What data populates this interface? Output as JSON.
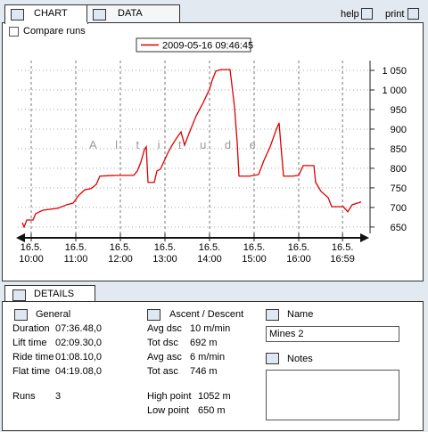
{
  "tabs": {
    "chart": "CHART",
    "data": "DATA",
    "details": "DETAILS"
  },
  "toolbar": {
    "help": "help",
    "print": "print"
  },
  "compare_runs": "Compare runs",
  "chart_data": {
    "type": "line",
    "annotation": "Altitude",
    "x": [
      9.8,
      9.84,
      9.9,
      10.04,
      10.1,
      10.26,
      10.6,
      10.8,
      10.94,
      11.06,
      11.2,
      11.34,
      11.46,
      11.54,
      11.9,
      12.3,
      12.38,
      12.46,
      12.54,
      12.58,
      12.62,
      12.76,
      12.82,
      12.9,
      12.96,
      13.06,
      13.16,
      13.26,
      13.36,
      13.44,
      13.54,
      13.7,
      13.86,
      14.0,
      14.06,
      14.14,
      14.26,
      14.46,
      14.5,
      14.56,
      14.62,
      14.66,
      14.9,
      15.1,
      15.22,
      15.36,
      15.5,
      15.56,
      15.6,
      15.66,
      15.86,
      16.0,
      16.1,
      16.34,
      16.38,
      16.5,
      16.66,
      16.74,
      17.0,
      17.1,
      17.2,
      17.4
    ],
    "series": [
      {
        "name": "2009-05-16 09:46:45",
        "color": "#dd0000",
        "values": [
          661,
          650,
          668,
          668,
          684,
          693,
          698,
          707,
          711,
          730,
          745,
          748,
          759,
          780,
          782,
          782,
          793,
          816,
          848,
          855,
          764,
          764,
          793,
          798,
          813,
          838,
          859,
          877,
          893,
          859,
          889,
          934,
          968,
          1002,
          1025,
          1048,
          1052,
          1052,
          1014,
          957,
          866,
          780,
          780,
          784,
          820,
          855,
          900,
          916,
          859,
          780,
          780,
          782,
          807,
          807,
          764,
          741,
          725,
          702,
          702,
          689,
          707,
          714
        ]
      }
    ],
    "xlim": [
      9.7,
      17.5
    ],
    "xticks": [
      {
        "value": 10,
        "label": "16.5.\n10:00"
      },
      {
        "value": 11,
        "label": "16.5.\n11:00"
      },
      {
        "value": 12,
        "label": "16.5.\n12:00"
      },
      {
        "value": 13,
        "label": "16.5.\n13:00"
      },
      {
        "value": 14,
        "label": "16.5.\n14:00"
      },
      {
        "value": 15,
        "label": "16.5.\n15:00"
      },
      {
        "value": 16,
        "label": "16.5.\n16:00"
      },
      {
        "value": 16.983,
        "label": "16.5.\n16:59"
      }
    ],
    "ylim": [
      627,
      1116
    ],
    "yticks": [
      650,
      700,
      750,
      800,
      850,
      900,
      950,
      {
        "value": 1000,
        "label": "1 000"
      },
      {
        "value": 1050,
        "label": "1 050"
      }
    ],
    "grid": true
  },
  "details": {
    "general": {
      "title": "General",
      "rows": [
        [
          "Duration",
          "07:36.48,0"
        ],
        [
          "Lift time",
          "02:09.30,0"
        ],
        [
          "Ride time",
          "01:08.10,0"
        ],
        [
          "Flat time",
          "04:19.08,0"
        ]
      ],
      "runs": [
        "Runs",
        "3"
      ]
    },
    "ascent_descent": {
      "title": "Ascent / Descent",
      "rows": [
        [
          "Avg dsc",
          "10 m/min"
        ],
        [
          "Tot dsc",
          "692 m"
        ],
        [
          "Avg asc",
          "6 m/min"
        ],
        [
          "Tot asc",
          "746 m"
        ]
      ],
      "points": [
        [
          "High point",
          "1052 m"
        ],
        [
          "Low point",
          "650 m"
        ]
      ]
    },
    "name": {
      "title": "Name",
      "value": "Mines 2"
    },
    "notes": {
      "title": "Notes"
    }
  }
}
